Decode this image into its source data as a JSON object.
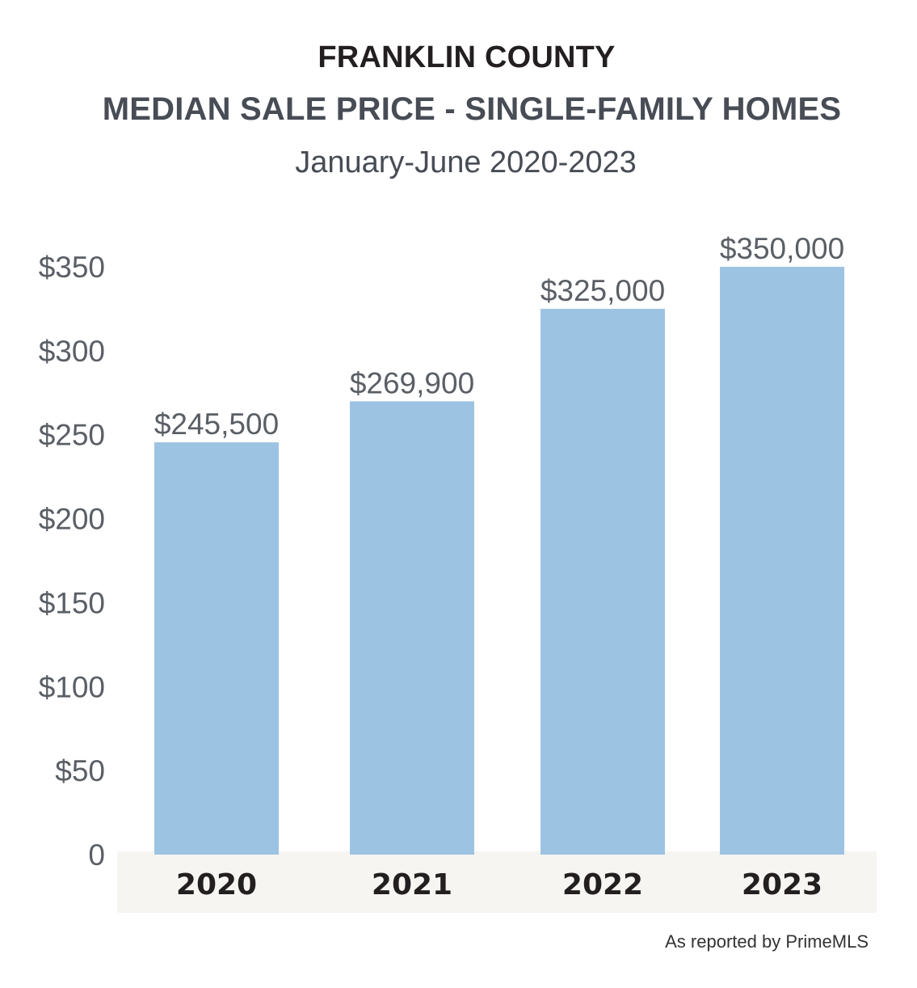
{
  "chart_data": {
    "type": "bar",
    "title": "FRANKLIN COUNTY",
    "subtitle": "MEDIAN SALE PRICE - SINGLE-FAMILY HOMES",
    "period": "January-June 2020-2023",
    "categories": [
      "2020",
      "2021",
      "2022",
      "2023"
    ],
    "values": [
      245500,
      269900,
      325000,
      350000
    ],
    "value_labels": [
      "$245,500",
      "$269,900",
      "$325,000",
      "$350,000"
    ],
    "y_ticks": [
      {
        "value": 0,
        "label": "0"
      },
      {
        "value": 50,
        "label": "$50"
      },
      {
        "value": 100,
        "label": "$100"
      },
      {
        "value": 150,
        "label": "$150"
      },
      {
        "value": 200,
        "label": "$200"
      },
      {
        "value": 250,
        "label": "$250"
      },
      {
        "value": 300,
        "label": "$300"
      },
      {
        "value": 350,
        "label": "$350"
      }
    ],
    "ylim": [
      0,
      350
    ],
    "y_unit_divisor": 1000,
    "xlabel": "",
    "ylabel": "",
    "grid": false,
    "legend": "none",
    "bar_color": "#9dc3e3",
    "axis_band_color": "#f6f5f1"
  },
  "source": "As reported by PrimeMLS"
}
